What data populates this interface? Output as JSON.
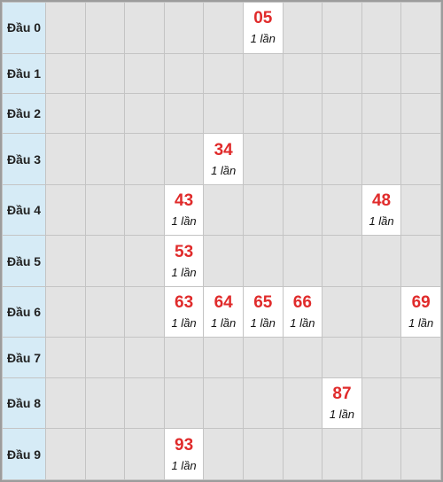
{
  "rows": [
    {
      "label": "Đầu 0",
      "cells": [
        {},
        {},
        {},
        {},
        {},
        {
          "num": "05",
          "count": "1 lần"
        },
        {},
        {},
        {},
        {}
      ]
    },
    {
      "label": "Đầu 1",
      "cells": [
        {},
        {},
        {},
        {},
        {},
        {},
        {},
        {},
        {},
        {}
      ]
    },
    {
      "label": "Đầu 2",
      "cells": [
        {},
        {},
        {},
        {},
        {},
        {},
        {},
        {},
        {},
        {}
      ]
    },
    {
      "label": "Đầu 3",
      "cells": [
        {},
        {},
        {},
        {},
        {
          "num": "34",
          "count": "1 lần"
        },
        {},
        {},
        {},
        {},
        {}
      ]
    },
    {
      "label": "Đầu 4",
      "cells": [
        {},
        {},
        {},
        {
          "num": "43",
          "count": "1 lần"
        },
        {},
        {},
        {},
        {},
        {
          "num": "48",
          "count": "1 lần"
        },
        {}
      ]
    },
    {
      "label": "Đầu 5",
      "cells": [
        {},
        {},
        {},
        {
          "num": "53",
          "count": "1 lần"
        },
        {},
        {},
        {},
        {},
        {},
        {}
      ]
    },
    {
      "label": "Đầu 6",
      "cells": [
        {},
        {},
        {},
        {
          "num": "63",
          "count": "1 lần"
        },
        {
          "num": "64",
          "count": "1 lần"
        },
        {
          "num": "65",
          "count": "1 lần"
        },
        {
          "num": "66",
          "count": "1 lần"
        },
        {},
        {},
        {
          "num": "69",
          "count": "1 lần"
        }
      ]
    },
    {
      "label": "Đầu 7",
      "cells": [
        {},
        {},
        {},
        {},
        {},
        {},
        {},
        {},
        {},
        {}
      ]
    },
    {
      "label": "Đầu 8",
      "cells": [
        {},
        {},
        {},
        {},
        {},
        {},
        {},
        {
          "num": "87",
          "count": "1 lần"
        },
        {},
        {}
      ]
    },
    {
      "label": "Đầu 9",
      "cells": [
        {},
        {},
        {},
        {
          "num": "93",
          "count": "1 lần"
        },
        {},
        {},
        {},
        {},
        {},
        {}
      ]
    }
  ],
  "colors": {
    "label_bg": "#d6ebf6",
    "empty_cell_bg": "#e3e3e3",
    "hit_cell_bg": "#ffffff",
    "number_text": "#e02b2b",
    "grid_line": "#c4c4c4"
  }
}
